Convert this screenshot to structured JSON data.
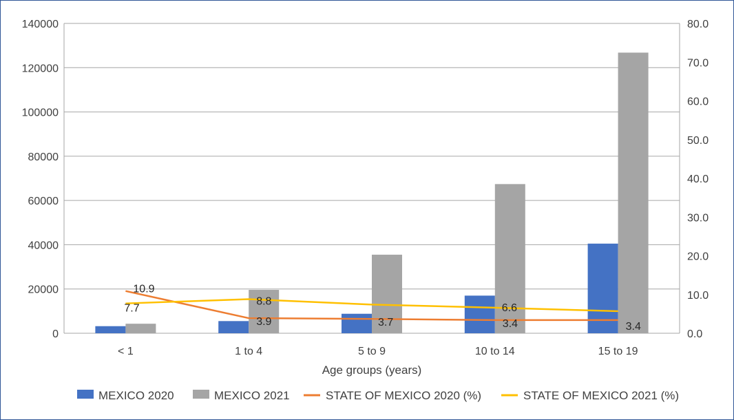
{
  "chart_data": {
    "type": "bar+line",
    "title": "",
    "xlabel": "Age groups (years)",
    "ylabel": "",
    "ylabel_right": "",
    "categories": [
      "< 1",
      "1 to 4",
      "5 to 9",
      "10 to 14",
      "15 to 19"
    ],
    "ylim": [
      0,
      140000
    ],
    "ylim_right": [
      0,
      80
    ],
    "y_ticks": [
      "0",
      "20000",
      "40000",
      "60000",
      "80000",
      "100000",
      "120000",
      "140000"
    ],
    "y_ticks_right": [
      "0.0",
      "10.0",
      "20.0",
      "30.0",
      "40.0",
      "50.0",
      "60.0",
      "70.0",
      "80.0"
    ],
    "grid": true,
    "legend_position": "bottom",
    "bar_series": [
      {
        "name": "MEXICO 2020",
        "color": "#4472c4",
        "values": [
          3200,
          5500,
          8800,
          17000,
          40500
        ]
      },
      {
        "name": "MEXICO 2021",
        "color": "#a5a5a5",
        "values": [
          4300,
          19600,
          35500,
          67400,
          126800
        ]
      }
    ],
    "line_series": [
      {
        "name": "STATE OF MEXICO 2020 (%)",
        "color": "#ed7d31",
        "axis": "right",
        "values": [
          10.9,
          3.9,
          3.7,
          3.4,
          3.4
        ],
        "labels": [
          "10.9",
          "3.9",
          "3.7",
          "3.4",
          "3.4"
        ]
      },
      {
        "name": "STATE OF MEXICO 2021 (%)",
        "color": "#ffc000",
        "axis": "right",
        "values": [
          7.7,
          8.8,
          7.4,
          6.6,
          5.7
        ],
        "labels": [
          "7.7",
          "8.8",
          "",
          "6.6",
          ""
        ]
      }
    ]
  }
}
